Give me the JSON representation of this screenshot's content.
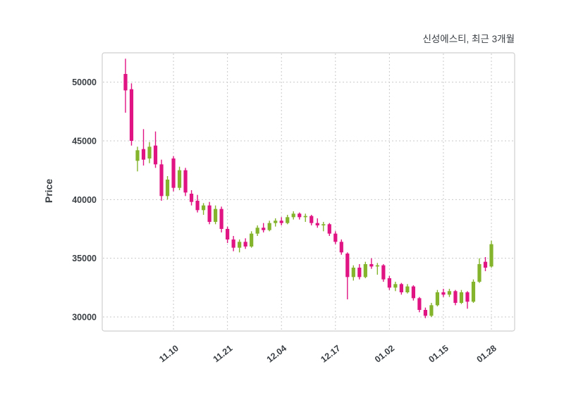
{
  "chart_data": {
    "type": "candlestick",
    "title": "신성에스티, 최근 3개월",
    "ylabel": "Price",
    "xlabel": "",
    "ylim": [
      28800,
      52500
    ],
    "yticks": [
      30000,
      35000,
      40000,
      45000,
      50000
    ],
    "xticks": [
      {
        "index": 8,
        "label": "11.10"
      },
      {
        "index": 17,
        "label": "11.21"
      },
      {
        "index": 26,
        "label": "12.04"
      },
      {
        "index": 35,
        "label": "12.17"
      },
      {
        "index": 44,
        "label": "01.02"
      },
      {
        "index": 53,
        "label": "01.15"
      },
      {
        "index": 61,
        "label": "01.28"
      }
    ],
    "grid": "dashed-both-axes",
    "legend": "none",
    "colors": {
      "up": "#84b42c",
      "down": "#e01483",
      "grid": "#c9c9c9",
      "border": "#cfcfcf",
      "text": "#3a3f44",
      "background": "#ffffff"
    },
    "candles_format": [
      "open",
      "high",
      "low",
      "close"
    ],
    "candles": [
      [
        50700,
        52000,
        47400,
        49300
      ],
      [
        49400,
        49900,
        44600,
        45000
      ],
      [
        43300,
        44500,
        42400,
        44200
      ],
      [
        44300,
        46000,
        42900,
        43400
      ],
      [
        43500,
        44900,
        43100,
        44500
      ],
      [
        44600,
        45800,
        42700,
        43000
      ],
      [
        43000,
        43400,
        39900,
        40300
      ],
      [
        40300,
        42000,
        40000,
        41700
      ],
      [
        43500,
        43700,
        40700,
        41000
      ],
      [
        41000,
        42800,
        40800,
        42500
      ],
      [
        42500,
        42700,
        40300,
        40600
      ],
      [
        40500,
        40800,
        39500,
        39800
      ],
      [
        39900,
        40400,
        38900,
        39100
      ],
      [
        39100,
        39700,
        38700,
        39500
      ],
      [
        39500,
        39800,
        37900,
        38100
      ],
      [
        38100,
        39500,
        37900,
        39200
      ],
      [
        39200,
        39400,
        37200,
        37500
      ],
      [
        37500,
        37700,
        36300,
        36600
      ],
      [
        36600,
        36900,
        35600,
        35900
      ],
      [
        35900,
        36600,
        35500,
        36400
      ],
      [
        36400,
        36700,
        35800,
        36000
      ],
      [
        36000,
        37300,
        35900,
        37100
      ],
      [
        37100,
        37800,
        36900,
        37600
      ],
      [
        37600,
        38000,
        37200,
        37400
      ],
      [
        37400,
        38200,
        37300,
        38000
      ],
      [
        38000,
        38400,
        37700,
        38200
      ],
      [
        38200,
        38500,
        37800,
        38000
      ],
      [
        38000,
        38700,
        37900,
        38500
      ],
      [
        38500,
        39000,
        38300,
        38800
      ],
      [
        38800,
        38900,
        38300,
        38500
      ],
      [
        38500,
        38800,
        38100,
        38600
      ],
      [
        38600,
        38700,
        37800,
        38000
      ],
      [
        38000,
        38400,
        37600,
        37800
      ],
      [
        37800,
        38100,
        37300,
        37900
      ],
      [
        37900,
        38000,
        36900,
        37100
      ],
      [
        37100,
        37300,
        36200,
        36400
      ],
      [
        36400,
        36600,
        35300,
        35500
      ],
      [
        35400,
        35500,
        31500,
        33400
      ],
      [
        33400,
        34400,
        33100,
        34200
      ],
      [
        34200,
        34500,
        33200,
        33400
      ],
      [
        33400,
        34700,
        33300,
        34500
      ],
      [
        34500,
        35000,
        34100,
        34300
      ],
      [
        34300,
        34600,
        33600,
        34400
      ],
      [
        34400,
        34500,
        33000,
        33200
      ],
      [
        33300,
        33500,
        32300,
        32500
      ],
      [
        32500,
        33000,
        32200,
        32800
      ],
      [
        32800,
        32900,
        31900,
        32100
      ],
      [
        32100,
        32800,
        32000,
        32600
      ],
      [
        32600,
        32700,
        31400,
        31600
      ],
      [
        31600,
        31700,
        30400,
        30600
      ],
      [
        30600,
        30800,
        29900,
        30100
      ],
      [
        30100,
        31200,
        30000,
        31000
      ],
      [
        31000,
        32300,
        30900,
        32100
      ],
      [
        32100,
        32400,
        31700,
        31900
      ],
      [
        31900,
        32400,
        31700,
        32200
      ],
      [
        32200,
        32300,
        31000,
        31200
      ],
      [
        31200,
        32300,
        31100,
        32100
      ],
      [
        32100,
        32200,
        30700,
        31300
      ],
      [
        31300,
        33200,
        31200,
        33000
      ],
      [
        33000,
        35000,
        32900,
        34500
      ],
      [
        34700,
        35100,
        33900,
        34200
      ],
      [
        34300,
        36500,
        34200,
        36200
      ]
    ]
  }
}
